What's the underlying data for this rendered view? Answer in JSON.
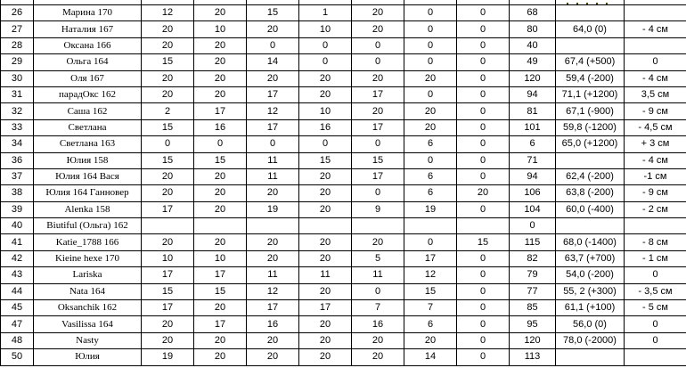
{
  "colors": {
    "highlight": "#ffff00",
    "grid": "#000000",
    "background": "#ffffff",
    "text": "#000000"
  },
  "partial_top_row": {
    "highlighted_result_cell": true,
    "clipped_text_visible": true
  },
  "rows": [
    {
      "num": "26",
      "name": "Марина 170",
      "scores": [
        "12",
        "20",
        "15",
        "1",
        "20",
        "0",
        "0"
      ],
      "total": "68",
      "result": "",
      "delta": "",
      "highlight": "none"
    },
    {
      "num": "27",
      "name": "Наталия 167",
      "scores": [
        "20",
        "10",
        "20",
        "10",
        "20",
        "0",
        "0"
      ],
      "total": "80",
      "result": "64,0 (0)",
      "delta": "- 4 см",
      "highlight": "none"
    },
    {
      "num": "28",
      "name": "Оксана 166",
      "scores": [
        "20",
        "20",
        "0",
        "0",
        "0",
        "0",
        "0"
      ],
      "total": "40",
      "result": "",
      "delta": "",
      "highlight": "none"
    },
    {
      "num": "29",
      "name": "Ольга 164",
      "scores": [
        "15",
        "20",
        "14",
        "0",
        "0",
        "0",
        "0"
      ],
      "total": "49",
      "result": "67,4 (+500)",
      "delta": "0",
      "highlight": "none"
    },
    {
      "num": "30",
      "name": "Оля 167",
      "scores": [
        "20",
        "20",
        "20",
        "20",
        "20",
        "20",
        "0"
      ],
      "total": "120",
      "result": "59,4 (-200)",
      "delta": "- 4 см",
      "highlight": "row"
    },
    {
      "num": "31",
      "name": "парадОкс 162",
      "scores": [
        "20",
        "20",
        "17",
        "20",
        "17",
        "0",
        "0"
      ],
      "total": "94",
      "result": "71,1 (+1200)",
      "delta": "3,5 см",
      "highlight": "none"
    },
    {
      "num": "32",
      "name": "Саша 162",
      "scores": [
        "2",
        "17",
        "12",
        "10",
        "20",
        "20",
        "0"
      ],
      "total": "81",
      "result": "67,1 (-900)",
      "delta": "- 9 см",
      "highlight": "none"
    },
    {
      "num": "33",
      "name": "Светлана",
      "scores": [
        "15",
        "16",
        "17",
        "16",
        "17",
        "20",
        "0"
      ],
      "total": "101",
      "result": "59,8 (-1200)",
      "delta": "- 4,5 см",
      "highlight": "result"
    },
    {
      "num": "34",
      "name": "Светлана 163",
      "scores": [
        "0",
        "0",
        "0",
        "0",
        "0",
        "6",
        "0"
      ],
      "total": "6",
      "result": "65,0 (+1200)",
      "delta": "+ 3 см",
      "highlight": "none"
    },
    {
      "num": "36",
      "name": "Юлия 158",
      "scores": [
        "15",
        "15",
        "11",
        "15",
        "15",
        "0",
        "0"
      ],
      "total": "71",
      "result": "",
      "delta": "- 4 см",
      "highlight": "none"
    },
    {
      "num": "37",
      "name": "Юлия 164 Вася",
      "scores": [
        "20",
        "20",
        "11",
        "20",
        "17",
        "6",
        "0"
      ],
      "total": "94",
      "result": "62,4 (-200)",
      "delta": "-1 см",
      "highlight": "none"
    },
    {
      "num": "38",
      "name": "Юлия 164 Ганновер",
      "scores": [
        "20",
        "20",
        "20",
        "20",
        "0",
        "6",
        "20"
      ],
      "total": "106",
      "result": "63,8 (-200)",
      "delta": "- 9 см",
      "highlight": "none"
    },
    {
      "num": "39",
      "name": "Alenka 158",
      "scores": [
        "17",
        "20",
        "19",
        "20",
        "9",
        "19",
        "0"
      ],
      "total": "104",
      "result": "60,0 (-400)",
      "delta": "- 2 см",
      "highlight": "none"
    },
    {
      "num": "40",
      "name": "Biutiful (Ольга) 162",
      "scores": [
        "",
        "",
        "",
        "",
        "",
        "",
        ""
      ],
      "total": "0",
      "result": "",
      "delta": "",
      "highlight": "none"
    },
    {
      "num": "41",
      "name": "Katie_1788 166",
      "scores": [
        "20",
        "20",
        "20",
        "20",
        "20",
        "0",
        "15"
      ],
      "total": "115",
      "result": "68,0 (-1400)",
      "delta": "- 8 см",
      "highlight": "result"
    },
    {
      "num": "42",
      "name": "Kieine hexe 170",
      "scores": [
        "10",
        "10",
        "20",
        "20",
        "5",
        "17",
        "0"
      ],
      "total": "82",
      "result": "63,7 (+700)",
      "delta": "- 1 см",
      "highlight": "none"
    },
    {
      "num": "43",
      "name": "Lariska",
      "scores": [
        "17",
        "17",
        "11",
        "11",
        "11",
        "12",
        "0"
      ],
      "total": "79",
      "result": "54,0 (-200)",
      "delta": "0",
      "highlight": "none"
    },
    {
      "num": "44",
      "name": "Nata 164",
      "scores": [
        "15",
        "15",
        "12",
        "20",
        "0",
        "15",
        "0"
      ],
      "total": "77",
      "result": "55, 2 (+300)",
      "delta": "- 3,5 см",
      "highlight": "none"
    },
    {
      "num": "45",
      "name": "Oksanchik 162",
      "scores": [
        "17",
        "20",
        "17",
        "17",
        "7",
        "7",
        "0"
      ],
      "total": "85",
      "result": "61,1 (+100)",
      "delta": "- 5 см",
      "highlight": "none"
    },
    {
      "num": "47",
      "name": "Vasilissa 164",
      "scores": [
        "20",
        "17",
        "16",
        "20",
        "16",
        "6",
        "0"
      ],
      "total": "95",
      "result": "56,0 (0)",
      "delta": "0",
      "highlight": "none"
    },
    {
      "num": "48",
      "name": "Nasty",
      "scores": [
        "20",
        "20",
        "20",
        "20",
        "20",
        "20",
        "0"
      ],
      "total": "120",
      "result": "78,0 (-2000)",
      "delta": "0",
      "highlight": "row_and_result"
    },
    {
      "num": "50",
      "name": "Юлия",
      "scores": [
        "19",
        "20",
        "20",
        "20",
        "20",
        "14",
        "0"
      ],
      "total": "113",
      "result": "",
      "delta": "",
      "highlight": "none"
    }
  ]
}
